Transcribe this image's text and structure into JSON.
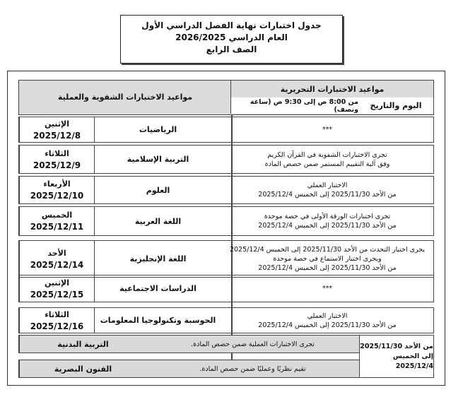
{
  "title": {
    "line1": "جدول اختبارات نهاية الفصل الدراسي الأول",
    "line2": "العام الدراسي 2026/2025",
    "line3": "الصف الرابع"
  },
  "header": {
    "written": "مواعيد الاختبارات التحريرية",
    "day_date": "اليوم والتاريخ",
    "time": "من 8:00 ص إلى 9:30 ص (ساعة ونصف)",
    "oral": "مواعيد الاختبارات الشفوية والعملية"
  },
  "rows": [
    {
      "day": "الإثنين",
      "date": "2025/12/8",
      "subject": "الرياضيات",
      "oral": [
        "***"
      ]
    },
    {
      "day": "الثلاثاء",
      "date": "2025/12/9",
      "subject": "التربية الإسلامية",
      "oral": [
        "تجرى الاختبارات الشفوية في القرآن الكريم",
        "وفق آلية التقييم المستمر ضمن حصص المادة"
      ]
    },
    {
      "day": "الأربعاء",
      "date": "2025/12/10",
      "subject": "العلوم",
      "oral": [
        "الاختبار العملي",
        "من الأحد 2025/11/30 إلى الخميس 2025/12/4"
      ]
    },
    {
      "day": "الخميس",
      "date": "2025/12/11",
      "subject": "اللغة العربية",
      "oral": [
        "تجرى اختبارات الورقة الأولى في حصة موحدة",
        "من الأحد 2025/11/30 إلى الخميس 2025/12/4"
      ]
    },
    {
      "day": "الأحد",
      "date": "2025/12/14",
      "subject": "اللغة الإنجليزية",
      "oral": [
        "يجرى اختبار التحدث من الأحد 2025/11/30 إلى الخميس 2025/12/4",
        "ويجرى اختبار الاستماع في حصة موحدة",
        "من الأحد 2025/11/30 إلى الخميس 2025/12/4"
      ]
    },
    {
      "day": "الإثنين",
      "date": "2025/12/15",
      "subject": "الدراسات الاجتماعية",
      "oral": [
        "***"
      ]
    },
    {
      "day": "الثلاثاء",
      "date": "2025/12/16",
      "subject": "الحوسبة وتكنولوجيا المعلومات",
      "oral": [
        "الاختبار العملي",
        "من الأحد 2025/11/30 إلى الخميس 2025/12/4"
      ]
    }
  ],
  "special": {
    "period": [
      "من الأحد 2025/11/30",
      "إلى الخميس 2025/12/4"
    ],
    "rows": [
      {
        "subject": "التربية البدنية",
        "oral": "تجرى الاختبارات العملية ضمن حصص المادة."
      },
      {
        "subject": "الفنون البصرية",
        "oral": "تقيم نظريًا وعمليًا ضمن حصص المادة."
      }
    ]
  }
}
